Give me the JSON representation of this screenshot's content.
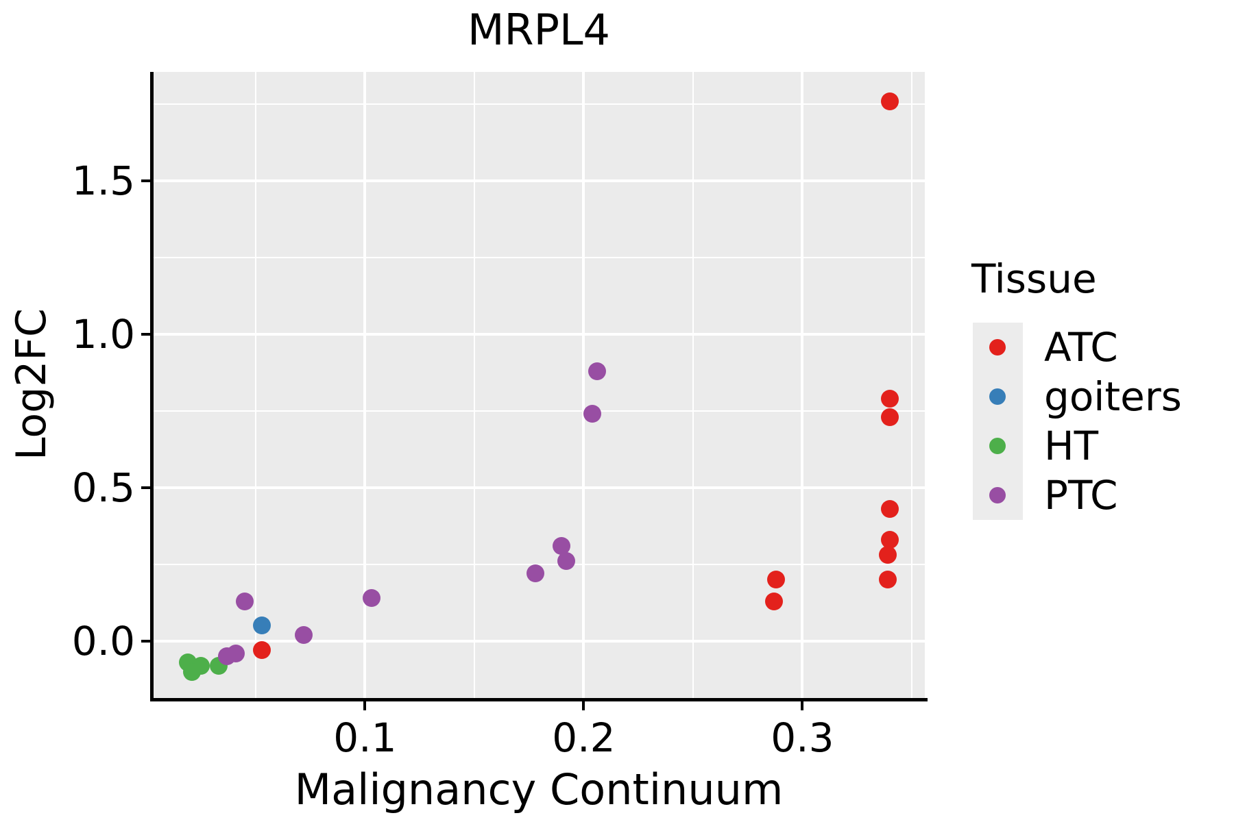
{
  "title": "MRPL4",
  "axes": {
    "x": {
      "label": "Malignancy Continuum",
      "range": [
        0.003,
        0.356
      ],
      "ticks": [
        0.1,
        0.2,
        0.3
      ],
      "tick_labels": [
        "0.1",
        "0.2",
        "0.3"
      ],
      "minor_ticks": [
        0.05,
        0.15,
        0.25,
        0.35
      ]
    },
    "y": {
      "label": "Log2FC",
      "range": [
        -0.19,
        1.855
      ],
      "ticks": [
        0.0,
        0.5,
        1.0,
        1.5
      ],
      "tick_labels": [
        "0.0",
        "0.5",
        "1.0",
        "1.5"
      ],
      "minor_ticks": [
        0.25,
        0.75,
        1.25,
        1.75
      ]
    }
  },
  "legend": {
    "title": "Tissue",
    "entries": [
      {
        "label": "ATC",
        "color": "#E3211C"
      },
      {
        "label": "goiters",
        "color": "#377EB8"
      },
      {
        "label": "HT",
        "color": "#4DAF4A"
      },
      {
        "label": "PTC",
        "color": "#984EA3"
      }
    ]
  },
  "colors": {
    "panel_bg": "#EBEBEB",
    "grid": "#FFFFFF",
    "axis": "#000000",
    "legend_key_bg": "#ECECEC",
    "atc_red": "#E3211C",
    "goiters_blue": "#377EB8",
    "ht_green": "#4DAF4A",
    "ptc_purple": "#984EA3"
  },
  "chart_data": {
    "type": "scatter",
    "title": "MRPL4",
    "xlabel": "Malignancy Continuum",
    "ylabel": "Log2FC",
    "xlim": [
      0.003,
      0.356
    ],
    "ylim": [
      -0.19,
      1.855
    ],
    "grid": true,
    "legend_title": "Tissue",
    "legend_position": "right",
    "series": [
      {
        "name": "ATC",
        "color": "#E3211C",
        "points": [
          [
            0.34,
            1.76
          ],
          [
            0.34,
            0.79
          ],
          [
            0.34,
            0.73
          ],
          [
            0.34,
            0.43
          ],
          [
            0.34,
            0.33
          ],
          [
            0.339,
            0.28
          ],
          [
            0.339,
            0.2
          ],
          [
            0.288,
            0.2
          ],
          [
            0.287,
            0.13
          ],
          [
            0.053,
            -0.03
          ]
        ]
      },
      {
        "name": "goiters",
        "color": "#377EB8",
        "points": [
          [
            0.053,
            0.05
          ]
        ]
      },
      {
        "name": "HT",
        "color": "#4DAF4A",
        "points": [
          [
            0.019,
            -0.07
          ],
          [
            0.025,
            -0.08
          ],
          [
            0.021,
            -0.1
          ],
          [
            0.033,
            -0.08
          ]
        ]
      },
      {
        "name": "PTC",
        "color": "#984EA3",
        "points": [
          [
            0.206,
            0.88
          ],
          [
            0.204,
            0.74
          ],
          [
            0.19,
            0.31
          ],
          [
            0.192,
            0.26
          ],
          [
            0.178,
            0.22
          ],
          [
            0.103,
            0.14
          ],
          [
            0.072,
            0.02
          ],
          [
            0.045,
            0.13
          ],
          [
            0.041,
            -0.04
          ],
          [
            0.037,
            -0.05
          ]
        ]
      }
    ]
  }
}
